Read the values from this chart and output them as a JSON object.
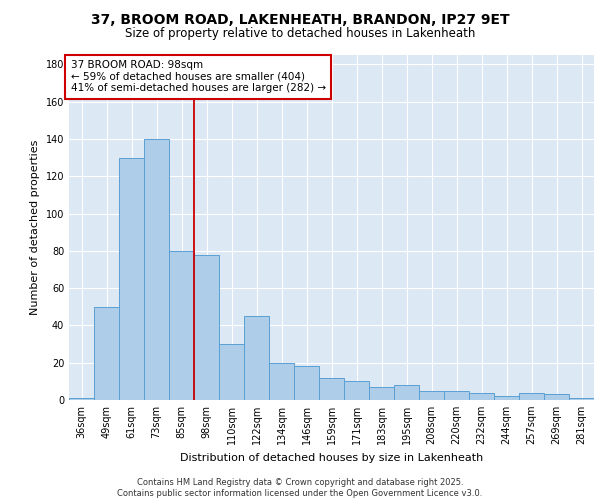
{
  "title_line1": "37, BROOM ROAD, LAKENHEATH, BRANDON, IP27 9ET",
  "title_line2": "Size of property relative to detached houses in Lakenheath",
  "xlabel": "Distribution of detached houses by size in Lakenheath",
  "ylabel": "Number of detached properties",
  "categories": [
    "36sqm",
    "49sqm",
    "61sqm",
    "73sqm",
    "85sqm",
    "98sqm",
    "110sqm",
    "122sqm",
    "134sqm",
    "146sqm",
    "159sqm",
    "171sqm",
    "183sqm",
    "195sqm",
    "208sqm",
    "220sqm",
    "232sqm",
    "244sqm",
    "257sqm",
    "269sqm",
    "281sqm"
  ],
  "values": [
    1,
    50,
    130,
    140,
    80,
    78,
    30,
    45,
    20,
    18,
    12,
    10,
    7,
    8,
    5,
    5,
    4,
    2,
    4,
    3,
    1
  ],
  "bar_color": "#aecde8",
  "bar_edge_color": "#5a9fd4",
  "vline_x_index": 5,
  "vline_color": "#cc0000",
  "annotation_text": "37 BROOM ROAD: 98sqm\n← 59% of detached houses are smaller (404)\n41% of semi-detached houses are larger (282) →",
  "annotation_box_color": "white",
  "annotation_box_edge_color": "#cc0000",
  "ylim": [
    0,
    185
  ],
  "yticks": [
    0,
    20,
    40,
    60,
    80,
    100,
    120,
    140,
    160,
    180
  ],
  "bg_color": "#dde8f5",
  "grid_color": "white",
  "footer": "Contains HM Land Registry data © Crown copyright and database right 2025.\nContains public sector information licensed under the Open Government Licence v3.0.",
  "title_fontsize": 10,
  "subtitle_fontsize": 8.5,
  "axis_label_fontsize": 8,
  "tick_fontsize": 7,
  "annotation_fontsize": 7.5,
  "footer_fontsize": 6
}
